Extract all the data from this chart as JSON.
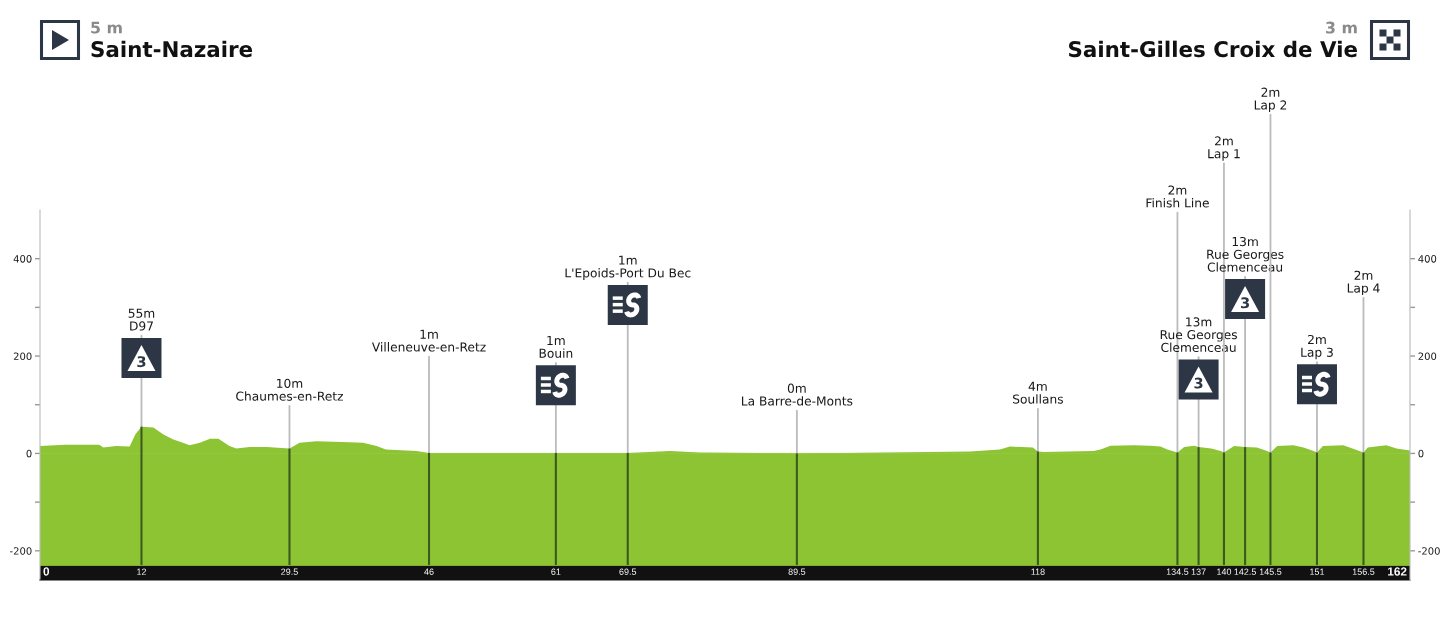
{
  "chart_data": {
    "type": "area",
    "color": "#8cc434",
    "x": [
      0,
      3,
      7,
      7.5,
      9,
      10.6,
      11.3,
      12,
      13.4,
      14.6,
      15.7,
      16.9,
      17.7,
      18.9,
      20.1,
      21.1,
      22.4,
      23.2,
      24.8,
      26.8,
      29.5,
      30.7,
      32.7,
      36.6,
      38.2,
      39.8,
      40.9,
      44.5,
      46,
      50,
      54,
      60,
      61,
      65,
      69.5,
      74.5,
      78,
      85,
      89.5,
      95,
      100,
      105,
      110,
      113.5,
      114.7,
      117.4,
      118,
      118.7,
      124.6,
      125.4,
      126.6,
      129.4,
      131.3,
      132.5,
      133.3,
      134.5,
      135.3,
      136.5,
      137,
      138.5,
      139.6,
      140,
      141.2,
      142.5,
      143.9,
      145.1,
      145.5,
      146.3,
      148.2,
      149.4,
      150.6,
      151,
      151.7,
      154.1,
      155.2,
      156.5,
      157,
      159.2,
      160.4,
      162
    ],
    "values": [
      15,
      18,
      18,
      12,
      15,
      14,
      40,
      55,
      53,
      39,
      29,
      22,
      17,
      22,
      30,
      30,
      15,
      10,
      13,
      13,
      10,
      22,
      25,
      23,
      22,
      15,
      8,
      5,
      1,
      1,
      1,
      1,
      1,
      1,
      1,
      5,
      2,
      1,
      0,
      1,
      2,
      3,
      4,
      8,
      14,
      12,
      4,
      3,
      5,
      8,
      16,
      17,
      16,
      14,
      8,
      2,
      13,
      16,
      13,
      10,
      5,
      2,
      15,
      13,
      12,
      5,
      2,
      15,
      17,
      12,
      5,
      2,
      15,
      17,
      10,
      2,
      12,
      17,
      10,
      6
    ],
    "bands": [
      {
        "axis": "y",
        "from": -260,
        "to": -230,
        "color": "#111111"
      },
      {
        "axis": "y",
        "from": -230,
        "to": 0,
        "color": "#8cc434"
      }
    ],
    "ref_lines": [
      {
        "axis": "x",
        "value": 12,
        "color": "#3c5a1f"
      },
      {
        "axis": "x",
        "value": 29.5,
        "color": "#3c5a1f"
      },
      {
        "axis": "x",
        "value": 46,
        "color": "#3c5a1f"
      },
      {
        "axis": "x",
        "value": 61,
        "color": "#3c5a1f"
      },
      {
        "axis": "x",
        "value": 69.5,
        "color": "#3c5a1f"
      },
      {
        "axis": "x",
        "value": 89.5,
        "color": "#3c5a1f"
      },
      {
        "axis": "x",
        "value": 118,
        "color": "#3c5a1f"
      },
      {
        "axis": "x",
        "value": 134.5,
        "color": "#3c5a1f"
      },
      {
        "axis": "x",
        "value": 137,
        "color": "#3c5a1f"
      },
      {
        "axis": "x",
        "value": 140,
        "color": "#3c5a1f"
      },
      {
        "axis": "x",
        "value": 142.5,
        "color": "#3c5a1f"
      },
      {
        "axis": "x",
        "value": 145.5,
        "color": "#3c5a1f"
      },
      {
        "axis": "x",
        "value": 151,
        "color": "#3c5a1f"
      },
      {
        "axis": "x",
        "value": 156.5,
        "color": "#3c5a1f"
      }
    ],
    "xlim": [
      0,
      162
    ],
    "xticks": [
      0,
      12,
      29.5,
      46,
      61,
      69.5,
      89.5,
      118,
      134.5,
      137,
      140,
      142.5,
      145.5,
      151,
      156.5,
      162
    ],
    "ylim": [
      -260,
      500
    ],
    "yticks": [
      -200,
      {
        "value": -100,
        "label": null
      },
      0,
      {
        "value": 100,
        "label": null
      },
      200,
      {
        "value": 300,
        "label": null
      },
      400
    ],
    "y2lim": [
      -260,
      500
    ],
    "y2ticks": [
      -200,
      {
        "value": -100,
        "label": null
      },
      0,
      {
        "value": 100,
        "label": null
      },
      200,
      {
        "value": 300,
        "label": null
      },
      400
    ],
    "annotations": [
      "5 m",
      "Saint-Nazaire",
      "3 m",
      "Saint-Gilles Croix de Vie",
      "3",
      "3",
      "3",
      {
        "text": "55m\nD97",
        "x": 12,
        "y": 55
      },
      {
        "text": "10m\nChaumes-en-Retz",
        "x": 29.5,
        "y": 10
      },
      {
        "text": "1m\nVilleneuve-en-Retz",
        "x": 46,
        "y": 1
      },
      {
        "text": "1m\nBouin",
        "x": 61,
        "y": 1
      },
      {
        "text": "1m\nL'Epoids-Port Du Bec",
        "x": 69.5,
        "y": 1
      },
      {
        "text": "0m\nLa Barre-de-Monts",
        "x": 89.5,
        "y": 0
      },
      {
        "text": "4m\nSoullans",
        "x": 118,
        "y": 4
      },
      {
        "text": "2m\nFinish Line",
        "x": 134.5,
        "y": 2
      },
      {
        "text": "13m\nRue Georges\nClemenceau",
        "x": 137,
        "y": 13
      },
      {
        "text": "2m\nLap 1",
        "x": 140,
        "y": 2
      },
      {
        "text": "13m\nRue Georges\nClemenceau",
        "x": 142.5,
        "y": 13
      },
      {
        "text": "2m\nLap 2",
        "x": 145.5,
        "y": 2
      },
      {
        "text": "2m\nLap 3",
        "x": 151,
        "y": 2
      },
      {
        "text": "2m\nLap 4",
        "x": 156.5,
        "y": 2
      }
    ]
  }
}
